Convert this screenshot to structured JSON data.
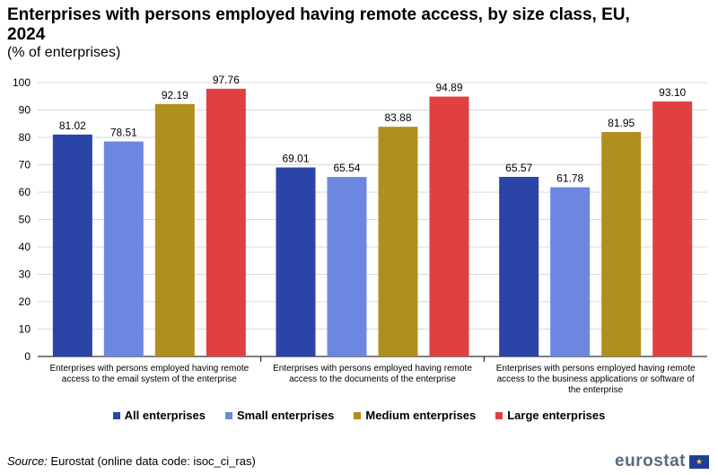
{
  "title": "Enterprises with persons employed having remote access, by size class, EU, 2024",
  "subtitle": "(% of enterprises)",
  "chart_data": {
    "type": "bar",
    "title": "Enterprises with persons employed having remote access, by size class, EU, 2024",
    "ylabel": "% of enterprises",
    "ylim": [
      0,
      100
    ],
    "yticks": [
      0,
      10,
      20,
      30,
      40,
      50,
      60,
      70,
      80,
      90,
      100
    ],
    "grid": true,
    "legend_position": "bottom",
    "categories": [
      [
        "Enterprises with persons employed having remote",
        "access to the email system of the enterprise"
      ],
      [
        "Enterprises with persons employed having remote",
        "access to the documents of the enterprise"
      ],
      [
        "Enterprises with persons employed having remote",
        "access to the business applications or software of",
        "the enterprise"
      ]
    ],
    "series": [
      {
        "name": "All enterprises",
        "color": "#2a44a8",
        "values": [
          81.02,
          69.01,
          65.57
        ]
      },
      {
        "name": "Small enterprises",
        "color": "#6b87e0",
        "values": [
          78.51,
          65.54,
          61.78
        ]
      },
      {
        "name": "Medium enterprises",
        "color": "#b08f1e",
        "values": [
          92.19,
          83.88,
          81.95
        ]
      },
      {
        "name": "Large enterprises",
        "color": "#e04040",
        "values": [
          97.76,
          94.89,
          93.1
        ]
      }
    ]
  },
  "source": {
    "label": "Source:",
    "text": "Eurostat (online data code: isoc_ci_ras)"
  },
  "logo": {
    "text": "eurostat",
    "flag_icon": "eu-flag-icon",
    "stars": "★"
  }
}
